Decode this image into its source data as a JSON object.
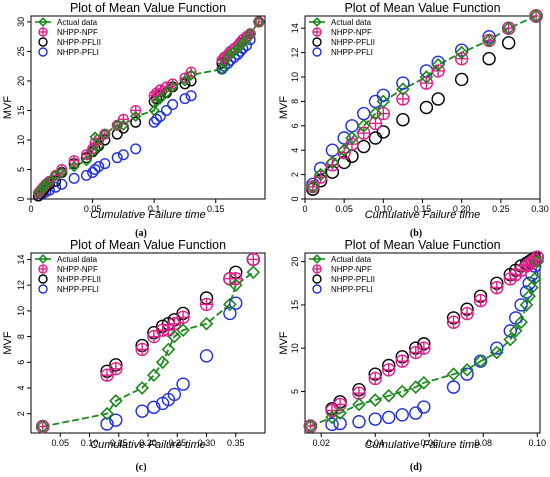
{
  "colors": {
    "actual": "#1a8a1a",
    "npf": "#e0208a",
    "pflii": "#000000",
    "pfli": "#1f2ee0"
  },
  "chart_data": [
    {
      "type": "scatter",
      "caption": "(a)",
      "title": "Plot of Mean Value Function",
      "xlabel": "Cumulative Failure time",
      "ylabel": "MVF",
      "xlim": [
        0,
        0.19
      ],
      "ylim": [
        0,
        31
      ],
      "xticks": [
        {
          "v": 0,
          "t": "0"
        },
        {
          "v": 0.05,
          "t": "0.05"
        },
        {
          "v": 0.1,
          "t": "0.1"
        },
        {
          "v": 0.15,
          "t": "0.15"
        }
      ],
      "yticks": [
        {
          "v": 0,
          "t": "0"
        },
        {
          "v": 5,
          "t": "5"
        },
        {
          "v": 10,
          "t": "10"
        },
        {
          "v": 15,
          "t": "15"
        },
        {
          "v": 20,
          "t": "20"
        },
        {
          "v": 25,
          "t": "25"
        },
        {
          "v": 30,
          "t": "30"
        }
      ],
      "legend_position": "top-left",
      "legend": [
        "Actual data",
        "NHPP-NPF",
        "NHPP-PFLII",
        "NHPP-PFLI"
      ],
      "x": [
        0.006,
        0.008,
        0.01,
        0.012,
        0.015,
        0.02,
        0.025,
        0.035,
        0.045,
        0.05,
        0.052,
        0.055,
        0.06,
        0.07,
        0.075,
        0.085,
        0.1,
        0.102,
        0.105,
        0.11,
        0.115,
        0.125,
        0.13,
        0.155,
        0.157,
        0.16,
        0.162,
        0.165,
        0.168,
        0.17,
        0.172,
        0.175,
        0.178,
        0.185
      ],
      "series": [
        {
          "name": "Actual data",
          "values": [
            1,
            1.5,
            2,
            2.5,
            3,
            4,
            4.5,
            5.5,
            6.5,
            8,
            10.5,
            9,
            11,
            12.5,
            12.5,
            14,
            15,
            16.5,
            17,
            18,
            19,
            20,
            21,
            22,
            23,
            24,
            24.5,
            25,
            25.5,
            26,
            26.5,
            27,
            28,
            30
          ]
        },
        {
          "name": "NHPP-NPF",
          "values": [
            1,
            1.5,
            2,
            2.5,
            3,
            4,
            5,
            6.5,
            7.5,
            8.5,
            9.5,
            10,
            11,
            12.5,
            13.5,
            15,
            17.5,
            18,
            18.5,
            19,
            19.5,
            20.5,
            21.5,
            23.5,
            24,
            24.5,
            25,
            25.5,
            26,
            26.5,
            27,
            27.5,
            28,
            30
          ]
        },
        {
          "name": "NHPP-PFLII",
          "values": [
            0.5,
            1,
            1.5,
            2,
            2.5,
            3,
            4.5,
            6,
            7,
            8,
            8.5,
            9,
            10,
            11,
            12,
            13,
            16.5,
            17,
            17.5,
            18,
            19,
            19.5,
            20,
            23,
            24,
            24.5,
            25,
            25.5,
            26,
            26.5,
            27,
            27.5,
            28,
            30
          ]
        },
        {
          "name": "NHPP-PFLI",
          "values": [
            0.5,
            0.8,
            1,
            1.2,
            1.5,
            2,
            2.5,
            3.5,
            4,
            4.5,
            5,
            5.5,
            6,
            7,
            7.5,
            8.5,
            13,
            13.5,
            14,
            15,
            16,
            17,
            17.5,
            22,
            22.5,
            23,
            23.5,
            24,
            24.5,
            25,
            25.5,
            26,
            27,
            30
          ]
        }
      ]
    },
    {
      "type": "scatter",
      "caption": "(b)",
      "title": "Plot of Mean Value Function",
      "xlabel": "Cumulative Failure time",
      "ylabel": "MVF",
      "xlim": [
        0,
        0.3
      ],
      "ylim": [
        0,
        15
      ],
      "xticks": [
        {
          "v": 0,
          "t": "0"
        },
        {
          "v": 0.05,
          "t": "0.05"
        },
        {
          "v": 0.1,
          "t": "0.10"
        },
        {
          "v": 0.15,
          "t": "0.15"
        },
        {
          "v": 0.2,
          "t": "0.20"
        },
        {
          "v": 0.25,
          "t": "0.25"
        },
        {
          "v": 0.3,
          "t": "0.30"
        }
      ],
      "yticks": [
        {
          "v": 0,
          "t": "0"
        },
        {
          "v": 2,
          "t": "2"
        },
        {
          "v": 4,
          "t": "4"
        },
        {
          "v": 6,
          "t": "6"
        },
        {
          "v": 8,
          "t": "8"
        },
        {
          "v": 10,
          "t": "10"
        },
        {
          "v": 12,
          "t": "12"
        },
        {
          "v": 14,
          "t": "14"
        }
      ],
      "legend_position": "top-left",
      "legend": [
        "Actual data",
        "NHPP-NPF",
        "NHPP-PFLII",
        "NHPP-PFLI"
      ],
      "x": [
        0.01,
        0.02,
        0.035,
        0.05,
        0.06,
        0.075,
        0.09,
        0.1,
        0.125,
        0.155,
        0.17,
        0.2,
        0.235,
        0.26,
        0.295
      ],
      "series": [
        {
          "name": "Actual data",
          "values": [
            1,
            2,
            3,
            4,
            5,
            6,
            7,
            8,
            9,
            10,
            11,
            12,
            13,
            14,
            15
          ]
        },
        {
          "name": "NHPP-NPF",
          "values": [
            1,
            1.8,
            2.8,
            3.8,
            4.5,
            5.4,
            6.2,
            7,
            8.2,
            9.5,
            10.5,
            11.5,
            13,
            14,
            15
          ]
        },
        {
          "name": "NHPP-PFLII",
          "values": [
            0.8,
            1.5,
            2.2,
            3,
            3.5,
            4.3,
            5,
            5.5,
            6.5,
            7.5,
            8.2,
            9.8,
            11.5,
            12.8,
            15
          ]
        },
        {
          "name": "NHPP-PFLI",
          "values": [
            1.2,
            2.5,
            4,
            5,
            6,
            7,
            8,
            8.5,
            9.5,
            10.5,
            11.2,
            12.2,
            13.3,
            14,
            15
          ]
        }
      ]
    },
    {
      "type": "scatter",
      "caption": "(c)",
      "title": "Plot of Mean Value Function",
      "xlabel": "Cumulative Failure time",
      "ylabel": "MVF",
      "xlim": [
        0,
        0.4
      ],
      "ylim": [
        0.5,
        14.5
      ],
      "xticks": [
        {
          "v": 0.05,
          "t": "0.05"
        },
        {
          "v": 0.1,
          "t": "0.10"
        },
        {
          "v": 0.15,
          "t": "0.15"
        },
        {
          "v": 0.2,
          "t": "0.20"
        },
        {
          "v": 0.25,
          "t": "0.25"
        },
        {
          "v": 0.3,
          "t": "0.30"
        },
        {
          "v": 0.35,
          "t": "0.35"
        }
      ],
      "yticks": [
        {
          "v": 2,
          "t": "2"
        },
        {
          "v": 4,
          "t": "4"
        },
        {
          "v": 6,
          "t": "6"
        },
        {
          "v": 8,
          "t": "8"
        },
        {
          "v": 10,
          "t": "10"
        },
        {
          "v": 12,
          "t": "12"
        },
        {
          "v": 14,
          "t": "14"
        }
      ],
      "legend_position": "top-left",
      "legend": [
        "Actual data",
        "NHPP-NPF",
        "NHPP-PFLII",
        "NHPP-PFLI"
      ],
      "x": [
        0.02,
        0.13,
        0.145,
        0.19,
        0.21,
        0.225,
        0.235,
        0.245,
        0.26,
        0.3,
        0.34,
        0.35,
        0.38
      ],
      "series": [
        {
          "name": "Actual data",
          "values": [
            1,
            2,
            3,
            4,
            5,
            6,
            7,
            8,
            8.5,
            9,
            10.5,
            12,
            13
          ]
        },
        {
          "name": "NHPP-NPF",
          "values": [
            1,
            5,
            5.5,
            7,
            8,
            8.5,
            8.5,
            9,
            9.5,
            10.5,
            12.5,
            12.5,
            14
          ]
        },
        {
          "name": "NHPP-PFLII",
          "values": [
            1,
            5.3,
            5.8,
            7.3,
            8.3,
            8.8,
            9,
            9.3,
            9.8,
            11,
            12.5,
            13,
            14
          ]
        },
        {
          "name": "NHPP-PFLI",
          "values": [
            1,
            1.2,
            1.5,
            2.2,
            2.5,
            2.8,
            3.1,
            3.5,
            4.3,
            6.5,
            9.8,
            10.6,
            14
          ]
        }
      ]
    },
    {
      "type": "scatter",
      "caption": "(d)",
      "title": "Plot of Mean Value Function",
      "xlabel": "Cumulative Failure time",
      "ylabel": "MVF",
      "xlim": [
        0.014,
        0.101
      ],
      "ylim": [
        0.2,
        21
      ],
      "xticks": [
        {
          "v": 0.02,
          "t": "0.02"
        },
        {
          "v": 0.04,
          "t": "0.04"
        },
        {
          "v": 0.06,
          "t": "0.06"
        },
        {
          "v": 0.08,
          "t": "0.08"
        },
        {
          "v": 0.1,
          "t": "0.10"
        }
      ],
      "yticks": [
        {
          "v": 5,
          "t": "5"
        },
        {
          "v": 10,
          "t": "10"
        },
        {
          "v": 15,
          "t": "15"
        },
        {
          "v": 20,
          "t": "20"
        }
      ],
      "legend_position": "top-left",
      "legend": [
        "Actual data",
        "NHPP-NPF",
        "NHPP-PFLII",
        "NHPP-PFLI"
      ],
      "x": [
        0.016,
        0.024,
        0.027,
        0.034,
        0.04,
        0.045,
        0.05,
        0.055,
        0.058,
        0.069,
        0.074,
        0.079,
        0.085,
        0.09,
        0.092,
        0.094,
        0.096,
        0.097,
        0.098,
        0.099,
        0.1
      ],
      "series": [
        {
          "name": "Actual data",
          "values": [
            1,
            2,
            2.5,
            3.5,
            4,
            4.5,
            5,
            5.5,
            6,
            7,
            7.5,
            8.5,
            9.5,
            11,
            12,
            13,
            15,
            16,
            17,
            18,
            20
          ]
        },
        {
          "name": "NHPP-NPF",
          "values": [
            1,
            2.8,
            3.5,
            4.8,
            6.5,
            7.5,
            8.5,
            9.5,
            10,
            13,
            14,
            15.5,
            17,
            18,
            18.5,
            19,
            19.5,
            19.7,
            20,
            20.2,
            20.5
          ]
        },
        {
          "name": "NHPP-PFLII",
          "values": [
            1,
            3,
            3.8,
            5.2,
            7,
            8,
            9,
            10,
            10.5,
            13.5,
            14.5,
            16,
            17.5,
            18.5,
            19,
            19.5,
            19.8,
            20,
            20.2,
            20.4,
            20.5
          ]
        },
        {
          "name": "NHPP-PFLI",
          "values": [
            1,
            1.2,
            1.3,
            1.5,
            1.8,
            2,
            2.3,
            2.5,
            3.2,
            5.5,
            7,
            8.5,
            10,
            12,
            13.5,
            15,
            16.5,
            17.5,
            18.5,
            19.5,
            20.5
          ]
        }
      ]
    }
  ]
}
